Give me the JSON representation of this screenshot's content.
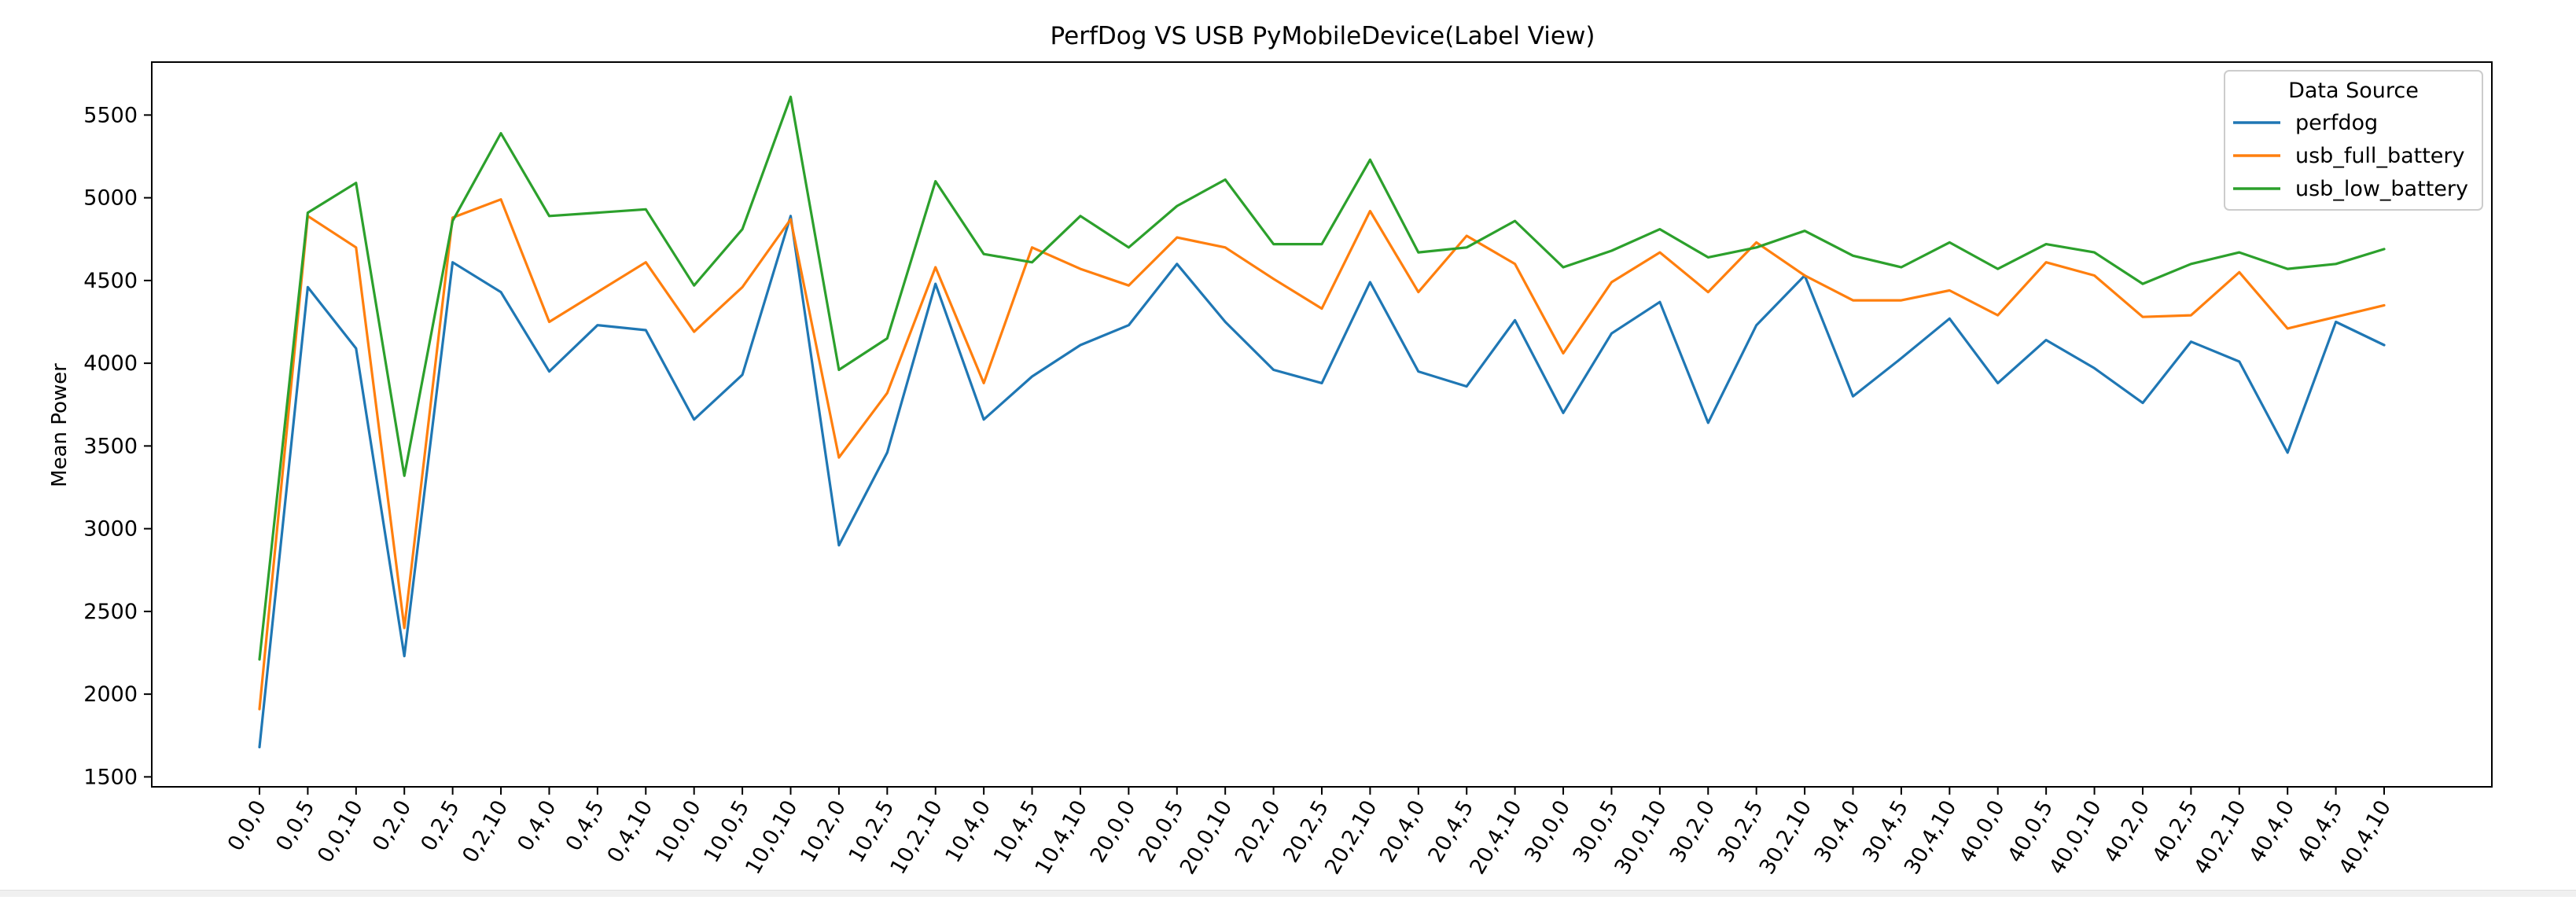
{
  "chart_data": {
    "type": "line",
    "title": "PerfDog VS USB PyMobileDevice(Label View)",
    "xlabel": "",
    "ylabel": "Mean Power",
    "ylim": [
      1440,
      5820
    ],
    "yticks": [
      1500,
      2000,
      2500,
      3000,
      3500,
      4000,
      4500,
      5000,
      5500
    ],
    "grid": false,
    "legend": {
      "title": "Data Source",
      "placement": "top-right"
    },
    "categories": [
      "0,0,0",
      "0,0,5",
      "0,0,10",
      "0,2,0",
      "0,2,5",
      "0,2,10",
      "0,4,0",
      "0,4,5",
      "0,4,10",
      "10,0,0",
      "10,0,5",
      "10,0,10",
      "10,2,0",
      "10,2,5",
      "10,2,10",
      "10,4,0",
      "10,4,5",
      "10,4,10",
      "20,0,0",
      "20,0,5",
      "20,0,10",
      "20,2,0",
      "20,2,5",
      "20,2,10",
      "20,4,0",
      "20,4,5",
      "20,4,10",
      "30,0,0",
      "30,0,5",
      "30,0,10",
      "30,2,0",
      "30,2,5",
      "30,2,10",
      "30,4,0",
      "30,4,5",
      "30,4,10",
      "40,0,0",
      "40,0,5",
      "40,0,10",
      "40,2,0",
      "40,2,5",
      "40,2,10",
      "40,4,0",
      "40,4,5",
      "40,4,10"
    ],
    "series": [
      {
        "name": "perfdog",
        "color": "#1f77b4",
        "values": [
          1680,
          4460,
          4090,
          2230,
          4610,
          4430,
          3950,
          4230,
          4200,
          3660,
          3930,
          4890,
          2900,
          3460,
          4480,
          3660,
          3920,
          4110,
          4230,
          4600,
          4250,
          3960,
          3880,
          4490,
          3950,
          3860,
          4260,
          3700,
          4180,
          4370,
          3640,
          4230,
          4530,
          3800,
          4030,
          4270,
          3880,
          4140,
          3970,
          3760,
          4130,
          4010,
          3460,
          4250,
          4110
        ]
      },
      {
        "name": "usb_full_battery",
        "color": "#ff7f0e",
        "values": [
          1910,
          4890,
          4700,
          2400,
          4880,
          4990,
          4250,
          4430,
          4610,
          4190,
          4460,
          4870,
          3430,
          3820,
          4580,
          3880,
          4700,
          4570,
          4470,
          4760,
          4700,
          4510,
          4330,
          4920,
          4430,
          4770,
          4600,
          4060,
          4490,
          4670,
          4430,
          4730,
          4530,
          4380,
          4380,
          4440,
          4290,
          4610,
          4530,
          4280,
          4290,
          4550,
          4210,
          4280,
          4350
        ]
      },
      {
        "name": "usb_low_battery",
        "color": "#2ca02c",
        "values": [
          2210,
          4910,
          5090,
          3320,
          4860,
          5390,
          4890,
          4910,
          4930,
          4470,
          4810,
          5610,
          3960,
          4150,
          5100,
          4660,
          4610,
          4890,
          4700,
          4950,
          5110,
          4720,
          4720,
          5230,
          4670,
          4700,
          4860,
          4580,
          4680,
          4810,
          4640,
          4700,
          4800,
          4650,
          4580,
          4730,
          4570,
          4720,
          4670,
          4480,
          4600,
          4670,
          4570,
          4600,
          4690
        ]
      }
    ]
  }
}
